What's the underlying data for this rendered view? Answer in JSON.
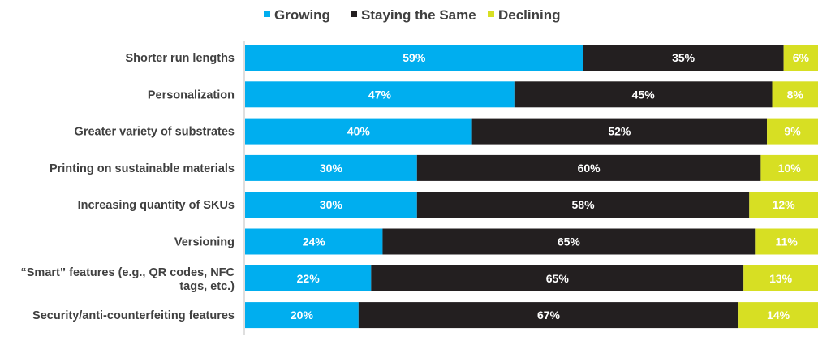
{
  "chart_data": {
    "type": "bar",
    "orientation": "horizontal",
    "stacked": true,
    "percent_stacked": true,
    "legend_position": "top",
    "grid": false,
    "categories": [
      "Shorter run lengths",
      "Personalization",
      "Greater variety of substrates",
      "Printing on sustainable materials",
      "Increasing quantity of SKUs",
      "Versioning",
      "“Smart” features (e.g., QR codes, NFC tags, etc.)",
      "Security/anti-counterfeiting features"
    ],
    "series": [
      {
        "name": "Growing",
        "color": "#00AEEF",
        "values": [
          59,
          47,
          40,
          30,
          30,
          24,
          22,
          20
        ],
        "labels": [
          "59%",
          "47%",
          "40%",
          "30%",
          "30%",
          "24%",
          "22%",
          "20%"
        ]
      },
      {
        "name": "Staying the Same",
        "color": "#231F20",
        "values": [
          35,
          45,
          52,
          60,
          58,
          65,
          65,
          67
        ],
        "labels": [
          "35%",
          "45%",
          "52%",
          "60%",
          "58%",
          "65%",
          "65%",
          "67%"
        ]
      },
      {
        "name": "Declining",
        "color": "#D7DF23",
        "values": [
          6,
          8,
          9,
          10,
          12,
          11,
          13,
          14
        ],
        "labels": [
          "6%",
          "8%",
          "9%",
          "10%",
          "12%",
          "11%",
          "13%",
          "14%"
        ]
      }
    ]
  }
}
